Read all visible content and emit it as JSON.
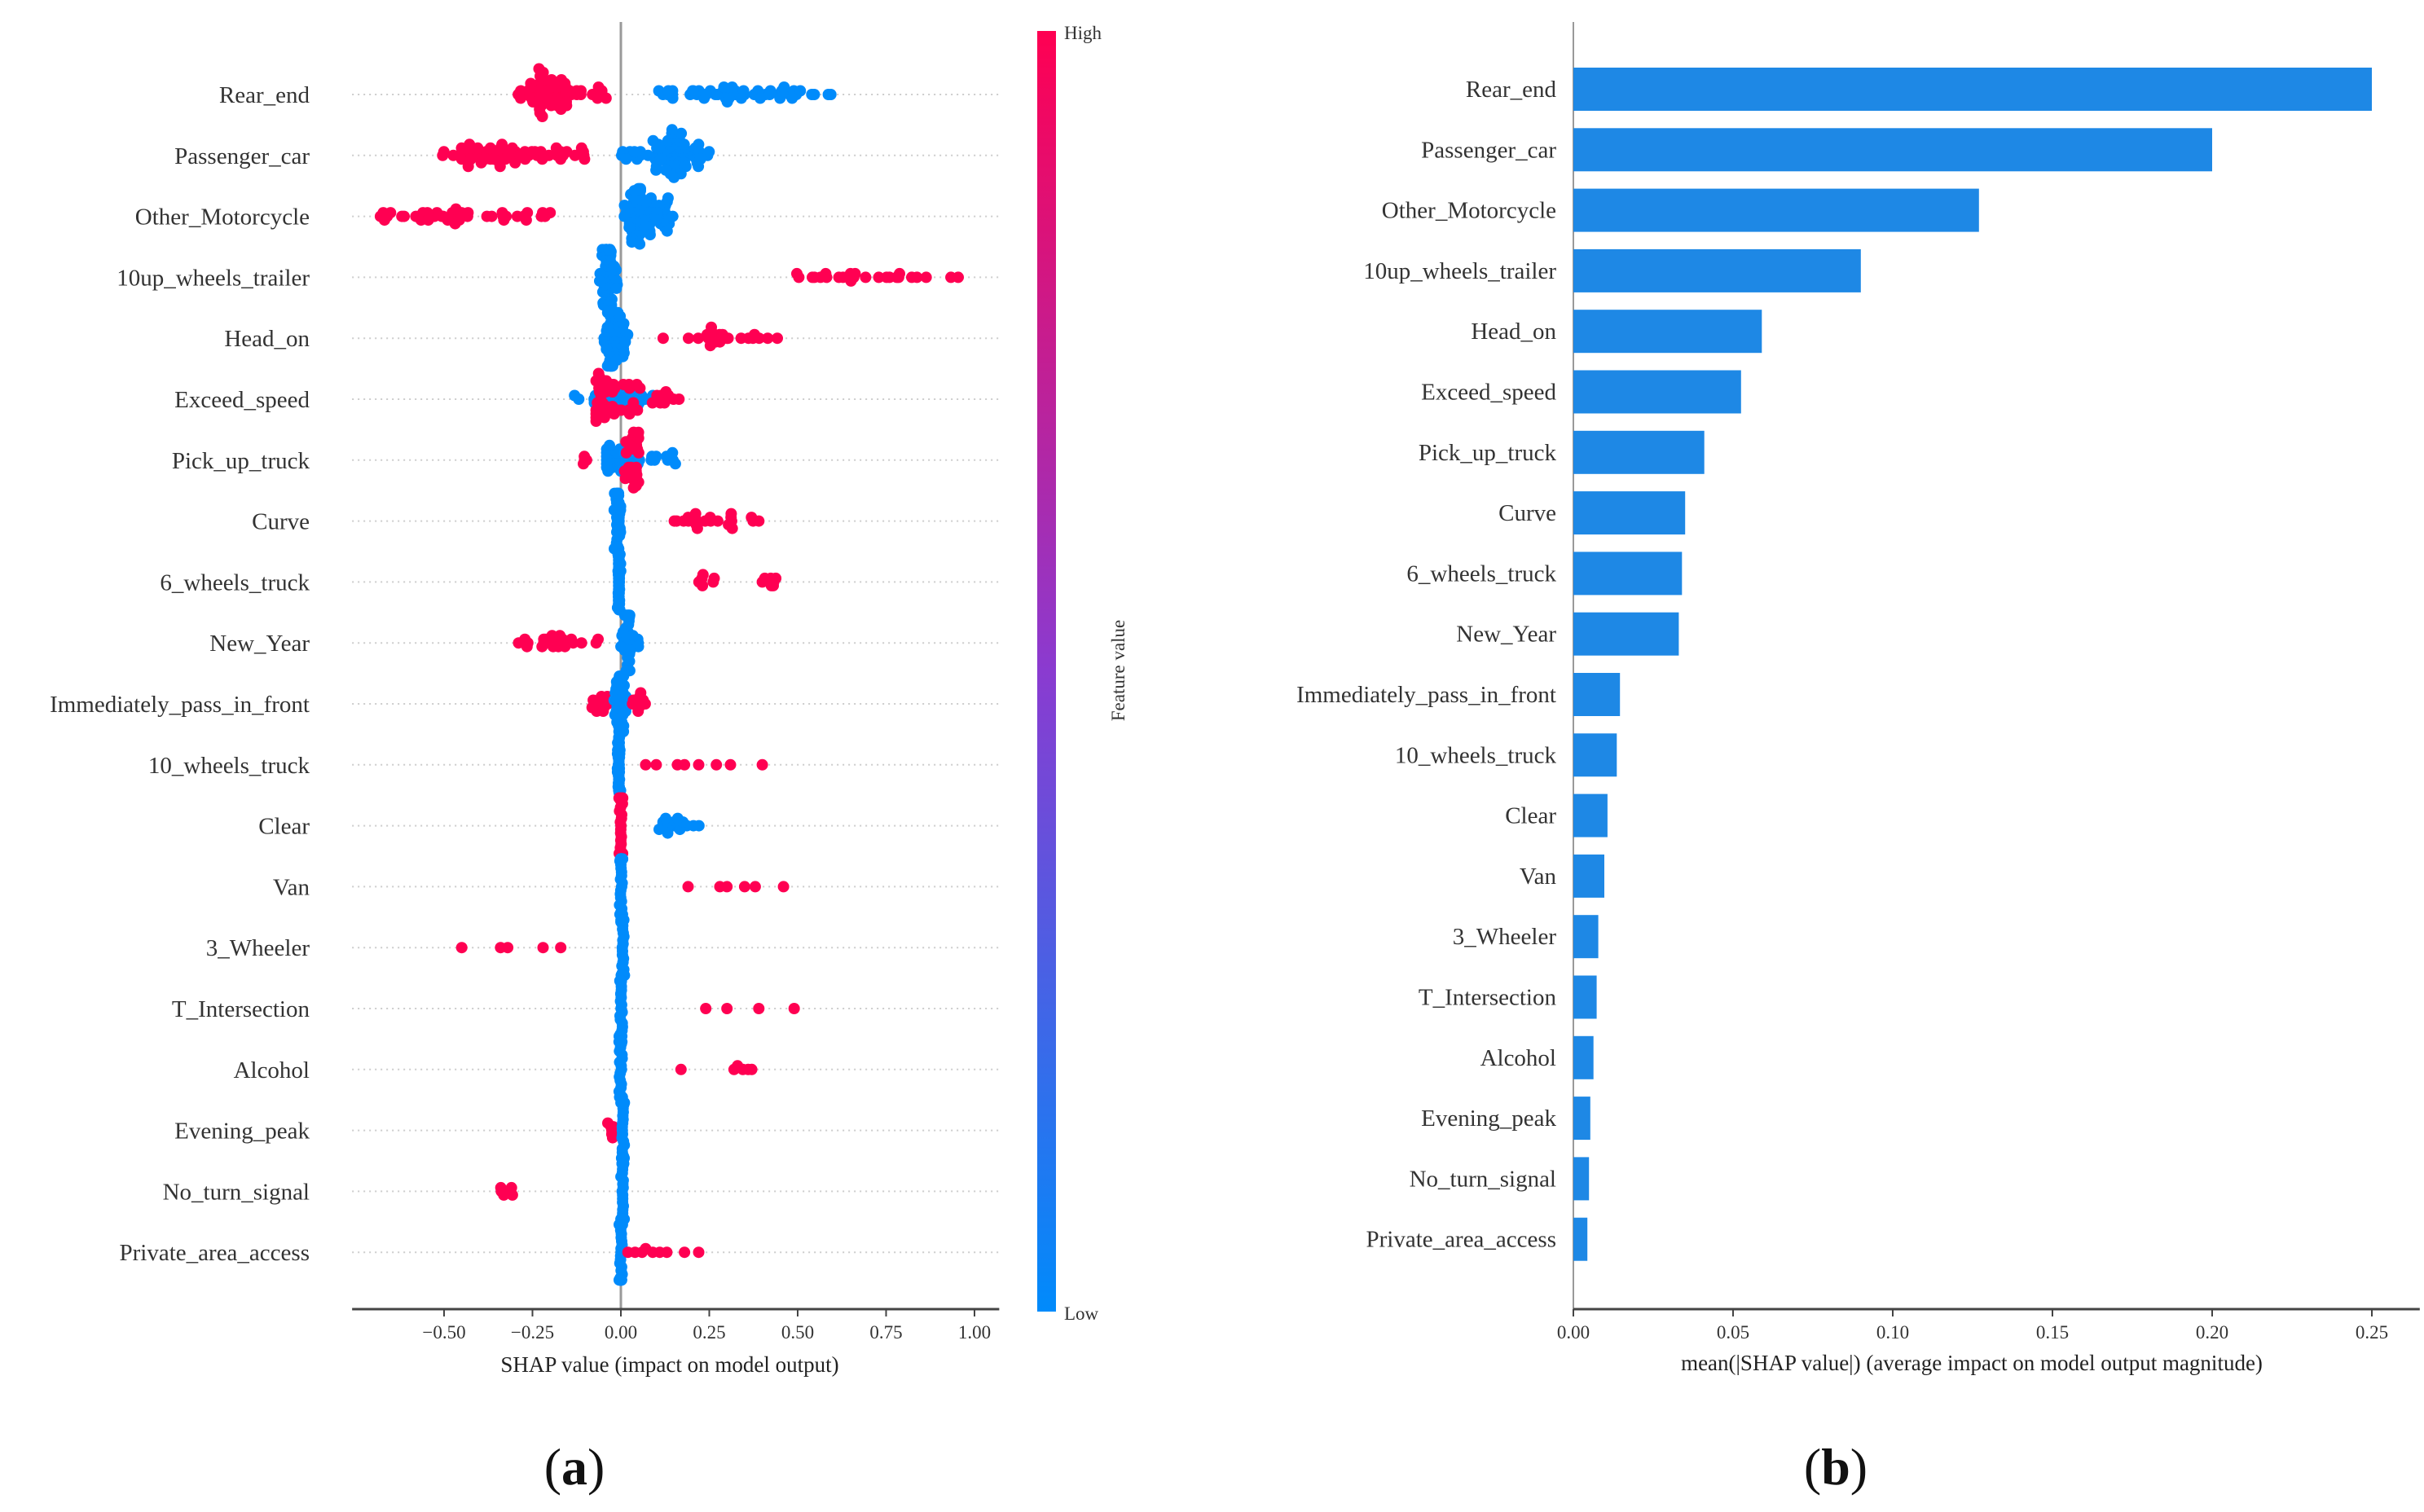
{
  "colors": {
    "high": "#ff0052",
    "low": "#008bfb",
    "mid": "#8a3bd0",
    "bar": "#1e88e5"
  },
  "panel_labels": {
    "a": "a",
    "b": "b"
  },
  "chart_data": [
    {
      "type": "scatter",
      "subtype": "beeswarm",
      "xlabel": "SHAP value (impact on model output)",
      "xlim": [
        -0.76,
        1.07
      ],
      "xticks": [
        -0.5,
        -0.25,
        0.0,
        0.25,
        0.5,
        0.75,
        1.0
      ],
      "xtick_labels": [
        "−0.50",
        "−0.25",
        "0.00",
        "0.25",
        "0.50",
        "0.75",
        "1.00"
      ],
      "colorbar": {
        "label": "Feature value",
        "high": "High",
        "low": "Low"
      },
      "features": [
        {
          "name": "Rear_end",
          "clusters": [
            {
              "c": "H",
              "from": -0.29,
              "to": -0.03,
              "n": 70,
              "peak": -0.22
            },
            {
              "c": "L",
              "from": 0.08,
              "to": 0.6,
              "n": 55,
              "peak": 0.3
            }
          ]
        },
        {
          "name": "Passenger_car",
          "clusters": [
            {
              "c": "H",
              "from": -0.52,
              "to": -0.09,
              "n": 70,
              "peak": -0.36
            },
            {
              "c": "L",
              "from": 0.0,
              "to": 0.25,
              "n": 80,
              "peak": 0.15
            }
          ]
        },
        {
          "name": "Other_Motorcycle",
          "clusters": [
            {
              "c": "H",
              "from": -0.68,
              "to": -0.12,
              "n": 45,
              "peak": -0.5
            },
            {
              "c": "L",
              "from": 0.01,
              "to": 0.15,
              "n": 80,
              "peak": 0.05
            }
          ]
        },
        {
          "name": "10up_wheels_trailer",
          "clusters": [
            {
              "c": "L",
              "from": -0.06,
              "to": -0.01,
              "n": 60,
              "peak": -0.04
            },
            {
              "c": "H",
              "from": 0.39,
              "to": 1.0,
              "n": 26,
              "peak": 0.7
            }
          ]
        },
        {
          "name": "Head_on",
          "clusters": [
            {
              "c": "L",
              "from": -0.05,
              "to": 0.02,
              "n": 70,
              "peak": -0.03
            },
            {
              "c": "H",
              "from": 0.06,
              "to": 0.45,
              "n": 24,
              "peak": 0.25
            }
          ]
        },
        {
          "name": "Exceed_speed",
          "clusters": [
            {
              "c": "L",
              "from": -0.15,
              "to": 0.15,
              "n": 40,
              "peak": 0.0
            },
            {
              "c": "H",
              "from": -0.07,
              "to": 0.17,
              "n": 50,
              "peak": -0.03
            }
          ]
        },
        {
          "name": "Pick_up_truck",
          "clusters": [
            {
              "c": "H",
              "from": -0.12,
              "to": -0.08,
              "n": 4,
              "peak": -0.1
            },
            {
              "c": "L",
              "from": -0.04,
              "to": 0.16,
              "n": 45,
              "peak": -0.02
            },
            {
              "c": "H",
              "from": 0.0,
              "to": 0.07,
              "n": 35,
              "peak": 0.04
            }
          ]
        },
        {
          "name": "Curve",
          "clusters": [
            {
              "c": "L",
              "from": -0.02,
              "to": 0.0,
              "n": 40,
              "peak": -0.01
            },
            {
              "c": "H",
              "from": 0.15,
              "to": 0.44,
              "n": 22,
              "peak": 0.25
            }
          ]
        },
        {
          "name": "6_wheels_truck",
          "clusters": [
            {
              "c": "L",
              "from": -0.01,
              "to": 0.0,
              "n": 40,
              "peak": -0.005
            },
            {
              "c": "H",
              "from": 0.21,
              "to": 0.27,
              "n": 6,
              "peak": 0.23
            },
            {
              "c": "H",
              "from": 0.4,
              "to": 0.44,
              "n": 8,
              "peak": 0.43
            }
          ]
        },
        {
          "name": "New_Year",
          "clusters": [
            {
              "c": "H",
              "from": -0.29,
              "to": -0.06,
              "n": 26,
              "peak": -0.18
            },
            {
              "c": "L",
              "from": 0.0,
              "to": 0.05,
              "n": 40,
              "peak": 0.02
            }
          ]
        },
        {
          "name": "Immediately_pass_in_front",
          "clusters": [
            {
              "c": "H",
              "from": -0.1,
              "to": -0.02,
              "n": 15,
              "peak": -0.05
            },
            {
              "c": "L",
              "from": -0.02,
              "to": 0.02,
              "n": 45,
              "peak": 0.0
            },
            {
              "c": "H",
              "from": 0.03,
              "to": 0.07,
              "n": 10,
              "peak": 0.05
            }
          ]
        },
        {
          "name": "10_wheels_truck",
          "clusters": [
            {
              "c": "L",
              "from": -0.01,
              "to": 0.0,
              "n": 40,
              "peak": -0.005
            },
            {
              "c": "H",
              "pts": [
                0.07,
                0.1,
                0.16,
                0.18,
                0.22,
                0.27,
                0.31,
                0.4
              ]
            }
          ]
        },
        {
          "name": "Clear",
          "clusters": [
            {
              "c": "H",
              "from": -0.005,
              "to": 0.005,
              "n": 40,
              "peak": 0.0
            },
            {
              "c": "L",
              "from": 0.07,
              "to": 0.26,
              "n": 18,
              "peak": 0.15
            }
          ]
        },
        {
          "name": "Van",
          "clusters": [
            {
              "c": "L",
              "from": -0.005,
              "to": 0.005,
              "n": 40,
              "peak": 0.0
            },
            {
              "c": "H",
              "pts": [
                0.19,
                0.28,
                0.3,
                0.35,
                0.38,
                0.46
              ]
            }
          ]
        },
        {
          "name": "3_Wheeler",
          "clusters": [
            {
              "c": "H",
              "pts": [
                -0.45,
                -0.34,
                -0.32,
                -0.22,
                -0.17
              ]
            },
            {
              "c": "L",
              "from": 0.0,
              "to": 0.01,
              "n": 40,
              "peak": 0.005
            }
          ]
        },
        {
          "name": "T_Intersection",
          "clusters": [
            {
              "c": "L",
              "from": -0.005,
              "to": 0.005,
              "n": 40,
              "peak": 0.0
            },
            {
              "c": "H",
              "pts": [
                0.24,
                0.3,
                0.39,
                0.49
              ]
            }
          ]
        },
        {
          "name": "Alcohol",
          "clusters": [
            {
              "c": "L",
              "from": -0.005,
              "to": 0.005,
              "n": 40,
              "peak": 0.0
            },
            {
              "c": "H",
              "pts": [
                0.17,
                0.32,
                0.33,
                0.345,
                0.36,
                0.37
              ]
            }
          ]
        },
        {
          "name": "Evening_peak",
          "clusters": [
            {
              "c": "H",
              "from": -0.04,
              "to": -0.01,
              "n": 8,
              "peak": -0.02
            },
            {
              "c": "L",
              "from": 0.0,
              "to": 0.01,
              "n": 40,
              "peak": 0.005
            }
          ]
        },
        {
          "name": "No_turn_signal",
          "clusters": [
            {
              "c": "H",
              "from": -0.34,
              "to": -0.29,
              "n": 6,
              "peak": -0.31
            },
            {
              "c": "L",
              "from": 0.0,
              "to": 0.01,
              "n": 40,
              "peak": 0.005
            }
          ]
        },
        {
          "name": "Private_area_access",
          "clusters": [
            {
              "c": "L",
              "from": -0.005,
              "to": 0.005,
              "n": 40,
              "peak": 0.0
            },
            {
              "c": "H",
              "pts": [
                0.02,
                0.04,
                0.06,
                0.07,
                0.09,
                0.11,
                0.13,
                0.18,
                0.22
              ]
            }
          ]
        }
      ]
    },
    {
      "type": "bar",
      "orientation": "horizontal",
      "xlabel": "mean(|SHAP value|) (average impact on model output magnitude)",
      "xlim": [
        0,
        0.265
      ],
      "xticks": [
        0.0,
        0.05,
        0.1,
        0.15,
        0.2,
        0.25
      ],
      "xtick_labels": [
        "0.00",
        "0.05",
        "0.10",
        "0.15",
        "0.20",
        "0.25"
      ],
      "categories": [
        "Rear_end",
        "Passenger_car",
        "Other_Motorcycle",
        "10up_wheels_trailer",
        "Head_on",
        "Exceed_speed",
        "Pick_up_truck",
        "Curve",
        "6_wheels_truck",
        "New_Year",
        "Immediately_pass_in_front",
        "10_wheels_truck",
        "Clear",
        "Van",
        "3_Wheeler",
        "T_Intersection",
        "Alcohol",
        "Evening_peak",
        "No_turn_signal",
        "Private_area_access"
      ],
      "values": [
        0.25,
        0.2,
        0.127,
        0.09,
        0.059,
        0.0525,
        0.041,
        0.035,
        0.034,
        0.033,
        0.0146,
        0.0136,
        0.0107,
        0.0097,
        0.0078,
        0.0073,
        0.0063,
        0.0053,
        0.0049,
        0.0044
      ]
    }
  ]
}
